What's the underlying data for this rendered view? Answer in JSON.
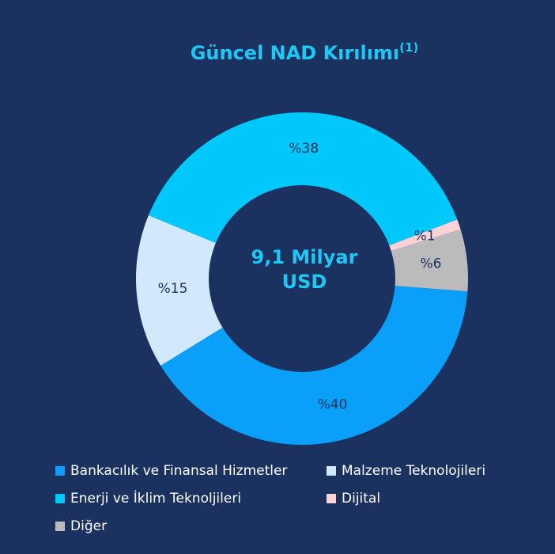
{
  "chart_data": {
    "type": "donut",
    "title": "Güncel NAD Kırılımı",
    "title_note": "(1)",
    "center_label": [
      "9,1 Milyar",
      "USD"
    ],
    "categories": [
      "Bankacılık ve Finansal Hizmetler",
      "Malzeme Teknolojileri",
      "Enerji ve İklim Teknoljileri",
      "Dijital",
      "Diğer"
    ],
    "values": [
      40,
      15,
      38,
      1,
      6
    ],
    "value_labels": [
      "%40",
      "%15",
      "%38",
      "%1",
      "%6"
    ],
    "colors": [
      "#0aa0fa",
      "#d2e9fb",
      "#00c8fb",
      "#fbd3d7",
      "#bbbbbb"
    ]
  }
}
